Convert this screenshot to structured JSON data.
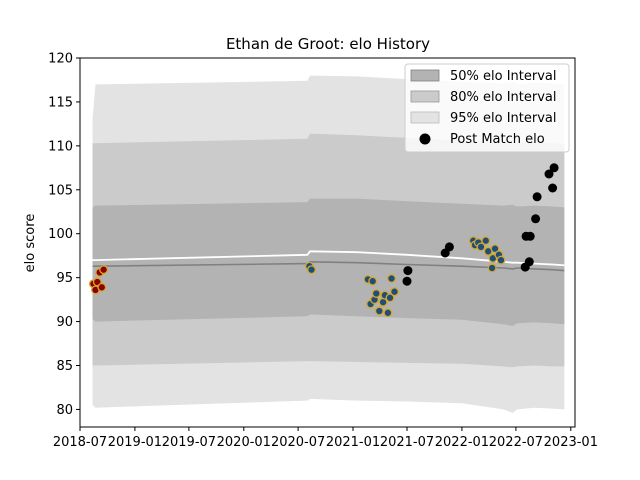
{
  "chart_data": {
    "type": "area",
    "title": "Ethan de Groot: elo History",
    "xlabel": "",
    "ylabel": "elo score",
    "xlim": [
      "2018-07-01",
      "2023-01-15"
    ],
    "ylim": [
      78,
      120
    ],
    "x_ticks": [
      "2018-07-01",
      "2019-01-01",
      "2019-07-01",
      "2020-01-01",
      "2020-07-01",
      "2021-01-01",
      "2021-07-01",
      "2022-01-01",
      "2022-07-01",
      "2023-01-01"
    ],
    "x_tick_labels": [
      "2018-07",
      "2019-01",
      "2019-07",
      "2020-01",
      "2020-07",
      "2021-01",
      "2021-07",
      "2022-01",
      "2022-07",
      "2023-01"
    ],
    "y_ticks": [
      80,
      85,
      90,
      95,
      100,
      105,
      110,
      115,
      120
    ],
    "grid": false,
    "legend_position": "top-right",
    "legend": [
      {
        "label": "50% elo Interval",
        "kind": "band",
        "color": "#b3b3b3"
      },
      {
        "label": "80% elo Interval",
        "kind": "band",
        "color": "#cbcbcb"
      },
      {
        "label": "95% elo Interval",
        "kind": "band",
        "color": "#e3e3e3"
      },
      {
        "label": "Post Match elo",
        "kind": "marker",
        "color": "#000000"
      }
    ],
    "colors": {
      "band50": "#b3b3b3",
      "band80": "#cbcbcb",
      "band95": "#e3e3e3",
      "median_line": "#808080",
      "mean_line": "#ffffff",
      "post_match": "#000000",
      "group_a_fill": "#8b0000",
      "group_b_fill": "#1f4e79",
      "group_edge": "#d4a830"
    },
    "bands": {
      "x": [
        "2018-08-12",
        "2018-08-22",
        "2020-08-01",
        "2020-08-10",
        "2021-01-15",
        "2021-07-01",
        "2022-01-01",
        "2022-05-20",
        "2022-06-20",
        "2022-07-05",
        "2022-09-01",
        "2022-11-01",
        "2022-12-10"
      ],
      "p95_upper": [
        113.0,
        117.0,
        117.4,
        118.0,
        117.9,
        117.6,
        117.3,
        117.1,
        117.3,
        117.0,
        117.2,
        117.1,
        117.0
      ],
      "p95_lower": [
        80.5,
        80.2,
        81.0,
        81.2,
        81.0,
        80.9,
        80.7,
        80.0,
        79.6,
        80.0,
        80.2,
        80.1,
        80.0
      ],
      "p80_upper": [
        110.3,
        110.3,
        110.8,
        111.4,
        111.2,
        110.9,
        110.6,
        110.3,
        110.5,
        110.3,
        110.4,
        110.3,
        110.2
      ],
      "p80_lower": [
        85.0,
        85.0,
        85.5,
        85.5,
        85.4,
        85.3,
        85.2,
        84.9,
        84.8,
        84.9,
        85.0,
        84.9,
        84.9
      ],
      "p50_upper": [
        103.0,
        103.2,
        103.6,
        104.0,
        104.0,
        103.7,
        103.4,
        103.2,
        103.3,
        103.1,
        103.2,
        103.1,
        103.0
      ],
      "p50_lower": [
        90.3,
        90.0,
        90.6,
        90.8,
        90.6,
        90.4,
        90.2,
        89.7,
        89.5,
        89.8,
        89.9,
        89.8,
        89.7
      ],
      "median": [
        96.3,
        96.3,
        96.6,
        96.8,
        96.7,
        96.5,
        96.3,
        96.1,
        96.0,
        96.1,
        96.0,
        95.9,
        95.8
      ],
      "mean": [
        97.0,
        97.0,
        97.6,
        98.0,
        97.9,
        97.6,
        97.2,
        96.8,
        96.7,
        96.7,
        96.6,
        96.5,
        96.4
      ]
    },
    "series": [
      {
        "name": "Post Match elo",
        "style": "post_match",
        "points": [
          {
            "x": "2021-07-01",
            "y": 94.6
          },
          {
            "x": "2021-07-04",
            "y": 95.8
          },
          {
            "x": "2021-11-06",
            "y": 97.8
          },
          {
            "x": "2021-11-20",
            "y": 98.5
          },
          {
            "x": "2022-08-01",
            "y": 96.2
          },
          {
            "x": "2022-08-04",
            "y": 99.7
          },
          {
            "x": "2022-08-15",
            "y": 96.8
          },
          {
            "x": "2022-08-18",
            "y": 99.7
          },
          {
            "x": "2022-09-05",
            "y": 101.7
          },
          {
            "x": "2022-09-10",
            "y": 104.2
          },
          {
            "x": "2022-10-20",
            "y": 106.8
          },
          {
            "x": "2022-11-01",
            "y": 105.2
          },
          {
            "x": "2022-11-06",
            "y": 107.5
          }
        ]
      },
      {
        "name": "",
        "style": "group_a",
        "points": [
          {
            "x": "2018-08-15",
            "y": 94.3
          },
          {
            "x": "2018-08-22",
            "y": 93.6
          },
          {
            "x": "2018-08-28",
            "y": 94.5
          },
          {
            "x": "2018-09-05",
            "y": 95.6
          },
          {
            "x": "2018-09-12",
            "y": 93.9
          },
          {
            "x": "2018-09-18",
            "y": 95.9
          }
        ]
      },
      {
        "name": "",
        "style": "group_b",
        "points": [
          {
            "x": "2020-08-08",
            "y": 96.3
          },
          {
            "x": "2020-08-15",
            "y": 95.9
          },
          {
            "x": "2021-02-20",
            "y": 94.8
          },
          {
            "x": "2021-03-01",
            "y": 92.0
          },
          {
            "x": "2021-03-08",
            "y": 94.6
          },
          {
            "x": "2021-03-14",
            "y": 92.5
          },
          {
            "x": "2021-03-20",
            "y": 93.2
          },
          {
            "x": "2021-03-30",
            "y": 91.2
          },
          {
            "x": "2021-04-12",
            "y": 92.2
          },
          {
            "x": "2021-04-18",
            "y": 93.0
          },
          {
            "x": "2021-04-28",
            "y": 91.0
          },
          {
            "x": "2021-05-05",
            "y": 92.7
          },
          {
            "x": "2021-05-10",
            "y": 94.9
          },
          {
            "x": "2021-05-20",
            "y": 93.4
          },
          {
            "x": "2022-02-08",
            "y": 99.2
          },
          {
            "x": "2022-02-14",
            "y": 98.7
          },
          {
            "x": "2022-02-25",
            "y": 99.0
          },
          {
            "x": "2022-03-06",
            "y": 98.5
          },
          {
            "x": "2022-03-22",
            "y": 99.2
          },
          {
            "x": "2022-03-30",
            "y": 98.0
          },
          {
            "x": "2022-04-12",
            "y": 96.1
          },
          {
            "x": "2022-04-15",
            "y": 97.2
          },
          {
            "x": "2022-04-22",
            "y": 98.3
          },
          {
            "x": "2022-05-05",
            "y": 97.6
          },
          {
            "x": "2022-05-12",
            "y": 97.0
          }
        ]
      }
    ]
  }
}
